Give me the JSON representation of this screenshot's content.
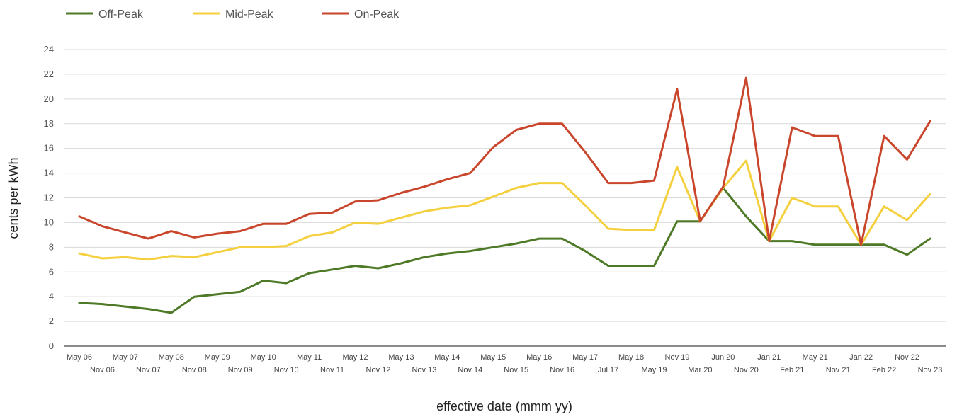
{
  "chart_data": {
    "type": "line",
    "xlabel": "effective date (mmm yy)",
    "ylabel": "cents per kWh",
    "ylim": [
      0,
      24
    ],
    "yticks": [
      0,
      2,
      4,
      6,
      8,
      10,
      12,
      14,
      16,
      18,
      20,
      22,
      24
    ],
    "grid": true,
    "legend_position": "top-left",
    "categories": [
      "May 06",
      "Nov 06",
      "May 07",
      "Nov 07",
      "May 08",
      "Nov 08",
      "May 09",
      "Nov 09",
      "May 10",
      "Nov 10",
      "May 11",
      "Nov 11",
      "May 12",
      "Nov 12",
      "May 13",
      "Nov 13",
      "May 14",
      "Nov 14",
      "May 15",
      "Nov 15",
      "May 16",
      "Nov 16",
      "May 17",
      "Jul 17",
      "May 18",
      "May 19",
      "Nov 19",
      "Mar 20",
      "Jun 20",
      "Nov 20",
      "Jan 21",
      "Feb 21",
      "May 21",
      "Nov 21",
      "Jan 22",
      "Feb 22",
      "Nov 22",
      "Nov 23"
    ],
    "series": [
      {
        "name": "Off-Peak",
        "color": "#4e7a27",
        "values": [
          3.5,
          3.4,
          3.2,
          3.0,
          2.7,
          4.0,
          4.2,
          4.4,
          5.3,
          5.1,
          5.9,
          6.2,
          6.5,
          6.3,
          6.7,
          7.2,
          7.5,
          7.7,
          8.0,
          8.3,
          8.7,
          8.7,
          7.7,
          6.5,
          6.5,
          6.5,
          10.1,
          10.1,
          12.8,
          10.5,
          8.5,
          8.5,
          8.2,
          8.2,
          8.2,
          8.2,
          7.4,
          8.7
        ]
      },
      {
        "name": "Mid-Peak",
        "color": "#f4d03f",
        "values": [
          7.5,
          7.1,
          7.2,
          7.0,
          7.3,
          7.2,
          7.6,
          8.0,
          8.0,
          8.1,
          8.9,
          9.2,
          10.0,
          9.9,
          10.4,
          10.9,
          11.2,
          11.4,
          12.1,
          12.8,
          13.2,
          13.2,
          11.4,
          9.5,
          9.4,
          9.4,
          14.5,
          10.1,
          12.8,
          15.0,
          8.5,
          12.0,
          11.3,
          11.3,
          8.2,
          11.3,
          10.2,
          12.3
        ]
      },
      {
        "name": "On-Peak",
        "color": "#c9462c",
        "values": [
          10.5,
          9.7,
          9.2,
          8.7,
          9.3,
          8.8,
          9.1,
          9.3,
          9.9,
          9.9,
          10.7,
          10.8,
          11.7,
          11.8,
          12.4,
          12.9,
          13.5,
          14.0,
          16.1,
          17.5,
          18.0,
          18.0,
          15.7,
          13.2,
          13.2,
          13.4,
          20.8,
          10.1,
          12.9,
          21.7,
          8.5,
          17.7,
          17.0,
          17.0,
          8.2,
          17.0,
          15.1,
          18.2
        ]
      }
    ]
  }
}
